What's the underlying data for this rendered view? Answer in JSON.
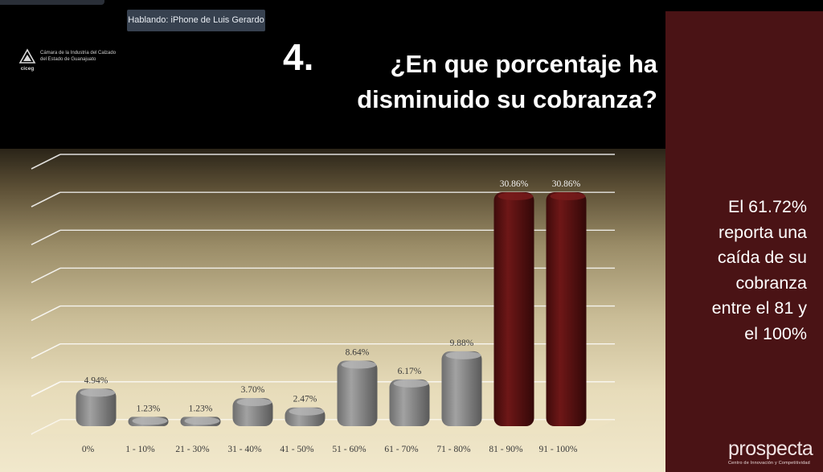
{
  "meeting": {
    "speaker_label": "Hablando: iPhone de Luis Gerardo"
  },
  "slide": {
    "logo_text": "Cámara de la Industria del Calzado del Estado de Guanajuato",
    "logo_mark_text": "ciceg",
    "question_number": "4.",
    "question_text": "¿En que porcentaje ha disminuido su cobranza?",
    "side_note": "El 61.72%\nreporta una\ncaída de su\ncobranza\nentre el 81 y\nel 100%",
    "brand_name": "prospecta",
    "brand_tagline": "Centro de Innovación y Competitividad"
  },
  "colors": {
    "bar_gray": "#8a8a8a",
    "bar_highlight": "#5a1212",
    "side_panel": "#4a1315"
  },
  "chart_data": {
    "type": "bar",
    "categories": [
      "0%",
      "1 - 10%",
      "21 - 30%",
      "31 - 40%",
      "41 - 50%",
      "51 - 60%",
      "61 - 70%",
      "71 - 80%",
      "81 - 90%",
      "91 - 100%"
    ],
    "values": [
      4.94,
      1.23,
      1.23,
      3.7,
      2.47,
      8.64,
      6.17,
      9.88,
      30.86,
      30.86
    ],
    "data_labels": [
      "4.94%",
      "1.23%",
      "1.23%",
      "3.70%",
      "2.47%",
      "8.64%",
      "6.17%",
      "9.88%",
      "30.86%",
      "30.86%"
    ],
    "highlight_categories": [
      "81 - 90%",
      "91 - 100%"
    ],
    "ylim": [
      0,
      35
    ],
    "grid": true,
    "title": "",
    "xlabel": "",
    "ylabel": ""
  }
}
